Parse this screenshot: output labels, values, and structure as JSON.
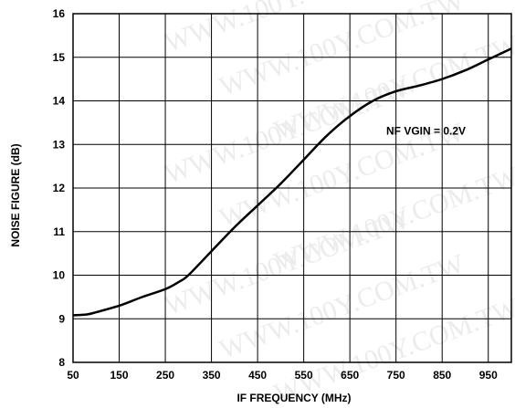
{
  "chart_data": {
    "type": "line",
    "xlabel": "IF FREQUENCY (MHz)",
    "ylabel": "NOISE FIGURE (dB)",
    "xlim": [
      50,
      1000
    ],
    "ylim": [
      8,
      16
    ],
    "x_ticks": [
      50,
      150,
      250,
      350,
      450,
      550,
      650,
      750,
      850,
      950
    ],
    "x_tick_labels": [
      "50",
      "150",
      "250",
      "350",
      "450",
      "550",
      "650",
      "750",
      "850",
      "950"
    ],
    "y_ticks": [
      8,
      9,
      10,
      11,
      12,
      13,
      14,
      15,
      16
    ],
    "y_tick_labels": [
      "8",
      "9",
      "10",
      "11",
      "12",
      "13",
      "14",
      "15",
      "16"
    ],
    "grid": true,
    "annotation": "NF VGIN = 0.2V",
    "series": [
      {
        "name": "NF VGIN = 0.2V",
        "color": "#000000",
        "x": [
          50,
          80,
          100,
          150,
          200,
          250,
          280,
          300,
          350,
          400,
          450,
          500,
          550,
          600,
          650,
          700,
          750,
          800,
          850,
          900,
          950,
          1000
        ],
        "y": [
          9.08,
          9.1,
          9.15,
          9.3,
          9.5,
          9.68,
          9.85,
          10.0,
          10.55,
          11.1,
          11.6,
          12.1,
          12.65,
          13.2,
          13.65,
          14.0,
          14.22,
          14.35,
          14.5,
          14.7,
          14.95,
          15.2
        ]
      }
    ]
  },
  "watermark": "WWW.100Y.COM.TW"
}
